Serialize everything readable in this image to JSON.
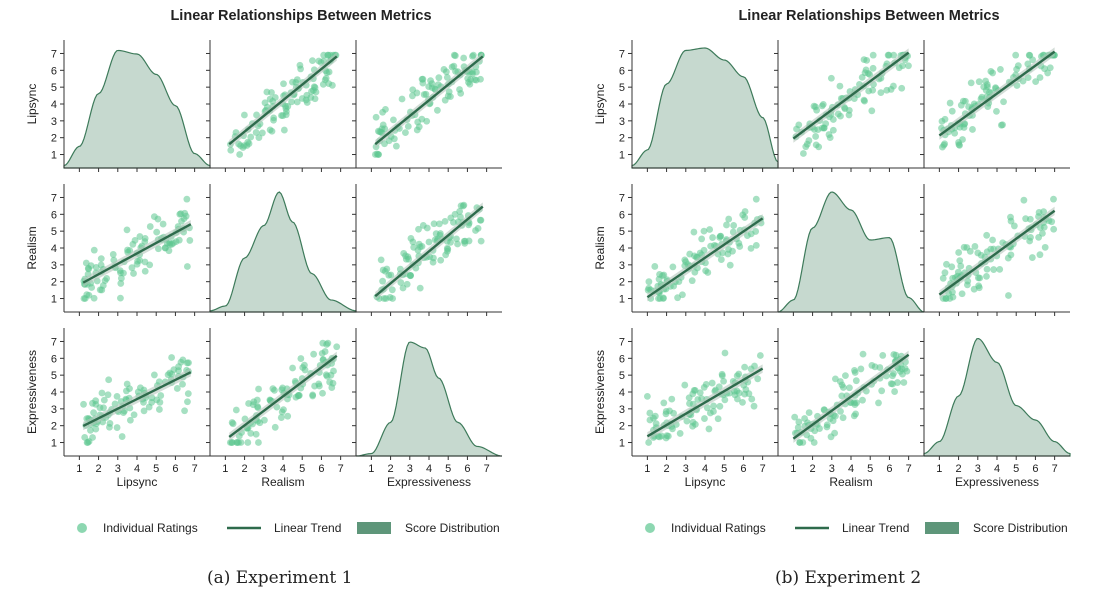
{
  "colors": {
    "point": "#5cc690",
    "line": "#2e6b4c",
    "kde_fill": "#c6d9cf",
    "kde_line": "#3d7a5a",
    "legend_patch": "#5e967a",
    "axis": "#333333"
  },
  "figures": [
    {
      "title": "Linear Relationships Between Metrics",
      "caption": "(a) Experiment 1",
      "variables": [
        "Lipsync",
        "Realism",
        "Expressiveness"
      ],
      "legend": [
        "Individual Ratings",
        "Linear Trend",
        "Score Distribution"
      ]
    },
    {
      "title": "Linear Relationships Between Metrics",
      "caption": "(b) Experiment 2",
      "variables": [
        "Lipsync",
        "Realism",
        "Expressiveness"
      ],
      "legend": [
        "Individual Ratings",
        "Linear Trend",
        "Score Distribution"
      ]
    }
  ],
  "chart_data": [
    {
      "type": "scatter",
      "title": "Linear Relationships Between Metrics",
      "layout": "pairplot 3x3",
      "variables": [
        "Lipsync",
        "Realism",
        "Expressiveness"
      ],
      "x_ticks": [
        1,
        2,
        3,
        4,
        5,
        6,
        7
      ],
      "y_ticks": [
        1,
        2,
        3,
        4,
        5,
        6,
        7
      ],
      "xlim": [
        0.2,
        7.8
      ],
      "ylim": [
        0.2,
        7.8
      ],
      "legend": [
        "Individual Ratings",
        "Linear Trend",
        "Score Distribution"
      ],
      "legend_placement": "bottom",
      "grid": false,
      "n_points": 100,
      "kde": {
        "Lipsync": [
          [
            0.2,
            0.02
          ],
          [
            1,
            0.18
          ],
          [
            2,
            0.62
          ],
          [
            3,
            0.98
          ],
          [
            4,
            0.95
          ],
          [
            5,
            0.78
          ],
          [
            6,
            0.52
          ],
          [
            7,
            0.12
          ],
          [
            7.8,
            0.02
          ]
        ],
        "Realism": [
          [
            0.2,
            0.01
          ],
          [
            1,
            0.05
          ],
          [
            2,
            0.45
          ],
          [
            3,
            0.72
          ],
          [
            3.8,
            1.0
          ],
          [
            4.5,
            0.75
          ],
          [
            5.5,
            0.32
          ],
          [
            6.5,
            0.1
          ],
          [
            7.8,
            0.01
          ]
        ],
        "Expressiveness": [
          [
            0.2,
            0.0
          ],
          [
            1,
            0.02
          ],
          [
            2,
            0.28
          ],
          [
            3,
            0.95
          ],
          [
            3.8,
            0.9
          ],
          [
            4.5,
            0.65
          ],
          [
            5.5,
            0.28
          ],
          [
            6.5,
            0.08
          ],
          [
            7.8,
            0.0
          ]
        ]
      },
      "regressions": [
        {
          "x": "Realism",
          "y": "Lipsync",
          "slope": 0.93,
          "intercept": 0.5,
          "x_range": [
            1.2,
            6.8
          ]
        },
        {
          "x": "Expressiveness",
          "y": "Lipsync",
          "slope": 0.93,
          "intercept": 0.5,
          "x_range": [
            1.2,
            6.8
          ]
        },
        {
          "x": "Lipsync",
          "y": "Realism",
          "slope": 0.62,
          "intercept": 1.2,
          "x_range": [
            1.2,
            6.8
          ]
        },
        {
          "x": "Expressiveness",
          "y": "Realism",
          "slope": 0.95,
          "intercept": 0.0,
          "x_range": [
            1.2,
            6.8
          ]
        },
        {
          "x": "Lipsync",
          "y": "Expressiveness",
          "slope": 0.57,
          "intercept": 1.3,
          "x_range": [
            1.2,
            6.8
          ]
        },
        {
          "x": "Realism",
          "y": "Expressiveness",
          "slope": 0.86,
          "intercept": 0.3,
          "x_range": [
            1.2,
            6.8
          ]
        }
      ]
    },
    {
      "type": "scatter",
      "title": "Linear Relationships Between Metrics",
      "layout": "pairplot 3x3",
      "variables": [
        "Lipsync",
        "Realism",
        "Expressiveness"
      ],
      "x_ticks": [
        1,
        2,
        3,
        4,
        5,
        6,
        7
      ],
      "y_ticks": [
        1,
        2,
        3,
        4,
        5,
        6,
        7
      ],
      "xlim": [
        0.2,
        7.8
      ],
      "ylim": [
        0.2,
        7.8
      ],
      "legend": [
        "Individual Ratings",
        "Linear Trend",
        "Score Distribution"
      ],
      "legend_placement": "bottom",
      "grid": false,
      "n_points": 100,
      "kde": {
        "Lipsync": [
          [
            0.2,
            0.02
          ],
          [
            1,
            0.15
          ],
          [
            2,
            0.7
          ],
          [
            3,
            0.98
          ],
          [
            4,
            1.0
          ],
          [
            5,
            0.9
          ],
          [
            6,
            0.76
          ],
          [
            7,
            0.42
          ],
          [
            7.8,
            0.05
          ]
        ],
        "Realism": [
          [
            0.2,
            0.0
          ],
          [
            1,
            0.1
          ],
          [
            2,
            0.7
          ],
          [
            3,
            1.0
          ],
          [
            4,
            0.85
          ],
          [
            5,
            0.6
          ],
          [
            6,
            0.62
          ],
          [
            7,
            0.12
          ],
          [
            7.8,
            0.0
          ]
        ],
        "Expressiveness": [
          [
            0.2,
            0.02
          ],
          [
            1,
            0.12
          ],
          [
            2,
            0.5
          ],
          [
            3,
            0.98
          ],
          [
            4,
            0.78
          ],
          [
            5,
            0.42
          ],
          [
            6,
            0.3
          ],
          [
            7,
            0.12
          ],
          [
            7.8,
            0.02
          ]
        ]
      },
      "regressions": [
        {
          "x": "Realism",
          "y": "Lipsync",
          "slope": 0.85,
          "intercept": 1.1,
          "x_range": [
            1.0,
            7.0
          ]
        },
        {
          "x": "Expressiveness",
          "y": "Lipsync",
          "slope": 0.83,
          "intercept": 1.3,
          "x_range": [
            1.0,
            7.0
          ]
        },
        {
          "x": "Lipsync",
          "y": "Realism",
          "slope": 0.78,
          "intercept": 0.3,
          "x_range": [
            1.0,
            7.0
          ]
        },
        {
          "x": "Expressiveness",
          "y": "Realism",
          "slope": 0.83,
          "intercept": 0.4,
          "x_range": [
            1.0,
            7.0
          ]
        },
        {
          "x": "Lipsync",
          "y": "Expressiveness",
          "slope": 0.67,
          "intercept": 0.7,
          "x_range": [
            1.0,
            7.0
          ]
        },
        {
          "x": "Realism",
          "y": "Expressiveness",
          "slope": 0.83,
          "intercept": 0.4,
          "x_range": [
            1.0,
            7.0
          ]
        }
      ]
    }
  ]
}
